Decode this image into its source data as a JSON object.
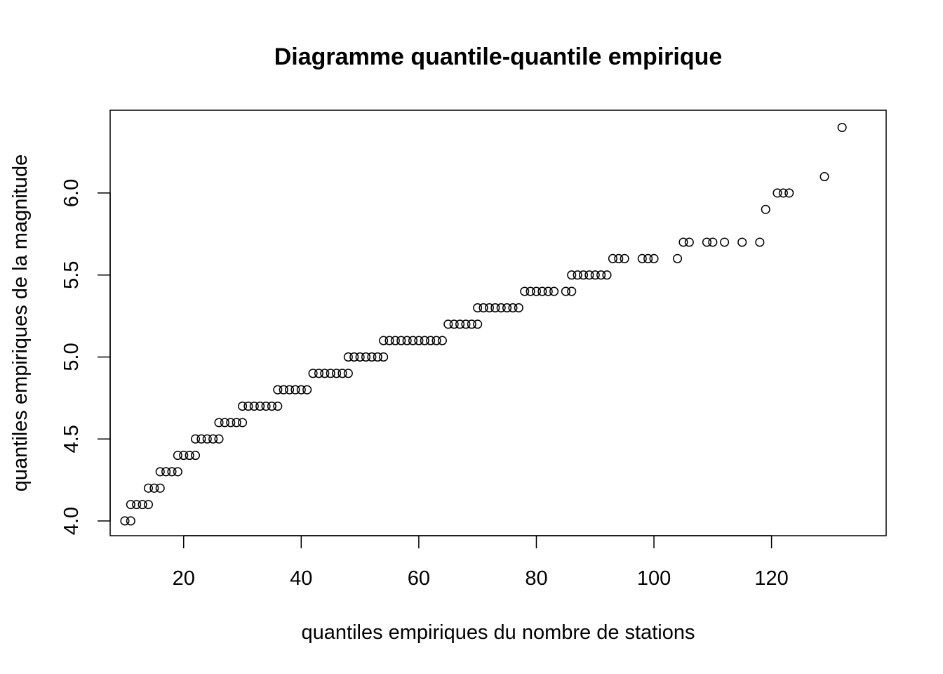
{
  "chart_data": {
    "type": "scatter",
    "title": "Diagramme quantile-quantile empirique",
    "xlabel": "quantiles empiriques du nombre de stations",
    "ylabel": "quantiles empiriques de la magnitude",
    "xlim": [
      7.5,
      139.5
    ],
    "ylim": [
      3.91,
      6.505
    ],
    "x_ticks": [
      20,
      40,
      60,
      80,
      100,
      120
    ],
    "x_tick_labels": [
      "20",
      "40",
      "60",
      "80",
      "100",
      "120"
    ],
    "y_ticks": [
      4.0,
      4.5,
      5.0,
      5.5,
      6.0
    ],
    "y_tick_labels": [
      "4.0",
      "4.5",
      "5.0",
      "5.5",
      "6.0"
    ],
    "grid": false,
    "marker": "open-circle",
    "points": [
      [
        10,
        4.0
      ],
      [
        11,
        4.0
      ],
      [
        11,
        4.1
      ],
      [
        12,
        4.1
      ],
      [
        13,
        4.1
      ],
      [
        14,
        4.1
      ],
      [
        14,
        4.2
      ],
      [
        15,
        4.2
      ],
      [
        16,
        4.2
      ],
      [
        16,
        4.3
      ],
      [
        17,
        4.3
      ],
      [
        18,
        4.3
      ],
      [
        19,
        4.3
      ],
      [
        19,
        4.4
      ],
      [
        20,
        4.4
      ],
      [
        21,
        4.4
      ],
      [
        22,
        4.4
      ],
      [
        22,
        4.5
      ],
      [
        23,
        4.5
      ],
      [
        24,
        4.5
      ],
      [
        25,
        4.5
      ],
      [
        26,
        4.5
      ],
      [
        26,
        4.6
      ],
      [
        27,
        4.6
      ],
      [
        28,
        4.6
      ],
      [
        29,
        4.6
      ],
      [
        30,
        4.6
      ],
      [
        30,
        4.7
      ],
      [
        31,
        4.7
      ],
      [
        32,
        4.7
      ],
      [
        33,
        4.7
      ],
      [
        34,
        4.7
      ],
      [
        35,
        4.7
      ],
      [
        36,
        4.7
      ],
      [
        36,
        4.8
      ],
      [
        37,
        4.8
      ],
      [
        38,
        4.8
      ],
      [
        39,
        4.8
      ],
      [
        40,
        4.8
      ],
      [
        41,
        4.8
      ],
      [
        42,
        4.9
      ],
      [
        43,
        4.9
      ],
      [
        44,
        4.9
      ],
      [
        45,
        4.9
      ],
      [
        46,
        4.9
      ],
      [
        47,
        4.9
      ],
      [
        48,
        4.9
      ],
      [
        48,
        5.0
      ],
      [
        49,
        5.0
      ],
      [
        50,
        5.0
      ],
      [
        51,
        5.0
      ],
      [
        52,
        5.0
      ],
      [
        53,
        5.0
      ],
      [
        54,
        5.0
      ],
      [
        54,
        5.1
      ],
      [
        55,
        5.1
      ],
      [
        56,
        5.1
      ],
      [
        57,
        5.1
      ],
      [
        58,
        5.1
      ],
      [
        59,
        5.1
      ],
      [
        60,
        5.1
      ],
      [
        61,
        5.1
      ],
      [
        62,
        5.1
      ],
      [
        63,
        5.1
      ],
      [
        64,
        5.1
      ],
      [
        65,
        5.2
      ],
      [
        66,
        5.2
      ],
      [
        67,
        5.2
      ],
      [
        68,
        5.2
      ],
      [
        69,
        5.2
      ],
      [
        70,
        5.2
      ],
      [
        70,
        5.3
      ],
      [
        71,
        5.3
      ],
      [
        72,
        5.3
      ],
      [
        73,
        5.3
      ],
      [
        74,
        5.3
      ],
      [
        75,
        5.3
      ],
      [
        76,
        5.3
      ],
      [
        77,
        5.3
      ],
      [
        78,
        5.4
      ],
      [
        79,
        5.4
      ],
      [
        80,
        5.4
      ],
      [
        81,
        5.4
      ],
      [
        82,
        5.4
      ],
      [
        83,
        5.4
      ],
      [
        85,
        5.4
      ],
      [
        86,
        5.4
      ],
      [
        86,
        5.5
      ],
      [
        87,
        5.5
      ],
      [
        88,
        5.5
      ],
      [
        89,
        5.5
      ],
      [
        90,
        5.5
      ],
      [
        91,
        5.5
      ],
      [
        92,
        5.5
      ],
      [
        93,
        5.6
      ],
      [
        94,
        5.6
      ],
      [
        95,
        5.6
      ],
      [
        98,
        5.6
      ],
      [
        99,
        5.6
      ],
      [
        100,
        5.6
      ],
      [
        104,
        5.6
      ],
      [
        105,
        5.7
      ],
      [
        106,
        5.7
      ],
      [
        109,
        5.7
      ],
      [
        110,
        5.7
      ],
      [
        112,
        5.7
      ],
      [
        115,
        5.7
      ],
      [
        118,
        5.7
      ],
      [
        119,
        5.9
      ],
      [
        121,
        6.0
      ],
      [
        122,
        6.0
      ],
      [
        123,
        6.0
      ],
      [
        129,
        6.1
      ],
      [
        132,
        6.4
      ]
    ]
  }
}
